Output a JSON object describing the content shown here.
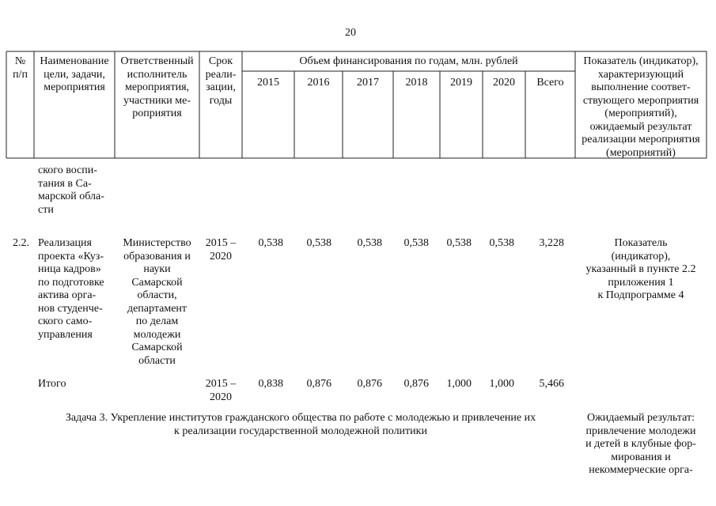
{
  "page_number": "20",
  "table": {
    "header": {
      "num": "№\nп/п",
      "name": "Наименование\nцели, задачи,\nмероприятия",
      "executor": "Ответственный\nисполнитель\nмероприятия,\nучастники ме-\nроприятия",
      "term": "Срок\nреали-\nзации,\nгоды",
      "financing": "Объем финансирования по годам, млн. рублей",
      "years": [
        "2015",
        "2016",
        "2017",
        "2018",
        "2019",
        "2020",
        "Всего"
      ],
      "indicator": "Показатель (индикатор),\nхарактеризующий\nвыполнение соответ-\nствующего мероприятия\n(мероприятий),\nожидаемый результат\nреализации мероприятия\n(мероприятий)"
    },
    "rows": [
      {
        "name": "ского воспи-\nтания в Са-\nмарской обла-\nсти"
      },
      {
        "num": "2.2.",
        "name": "Реализация\nпроекта «Куз-\nница кадров»\nпо подготовке\nактива орга-\nнов студенче-\nского само-\nуправления",
        "executor": "Министерство\nобразования и\nнауки\nСамарской\nобласти,\nдепартамент\nпо делам\nмолодежи\nСамарской\nобласти",
        "term": "2015 –\n2020",
        "values": [
          "0,538",
          "0,538",
          "0,538",
          "0,538",
          "0,538",
          "0,538",
          "3,228"
        ],
        "indicator": "Показатель\n(индикатор),\nуказанный в пункте 2.2\nприложения 1\nк Подпрограмме 4"
      },
      {
        "name": "Итого",
        "term": "2015 –\n2020",
        "values": [
          "0,838",
          "0,876",
          "0,876",
          "0,876",
          "1,000",
          "1,000",
          "5,466"
        ]
      },
      {
        "task": "Задача 3. Укрепление институтов гражданского общества по работе с молодежью и привлечение их\nк реализации государственной молодежной политики",
        "indicator": "Ожидаемый результат:\nпривлечение молодежи\nи детей в клубные фор-\nмирования и\nнекоммерческие орга-"
      }
    ]
  }
}
